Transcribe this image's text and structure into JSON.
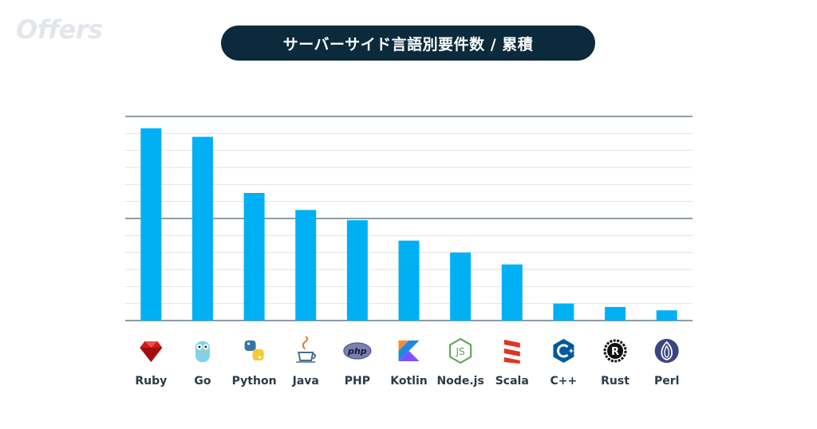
{
  "brand": {
    "watermark": "Offers"
  },
  "chart_data": {
    "type": "bar",
    "title": "サーバーサイド言語別要件数 / 累積",
    "categories": [
      "Ruby",
      "Go",
      "Python",
      "Java",
      "PHP",
      "Kotlin",
      "Node.js",
      "Scala",
      "C++",
      "Rust",
      "Perl"
    ],
    "icons": [
      "ruby-gem-icon",
      "go-gopher-icon",
      "python-icon",
      "java-cup-icon",
      "php-icon",
      "kotlin-icon",
      "nodejs-icon",
      "scala-icon",
      "cpp-icon",
      "rust-icon",
      "perl-onion-icon"
    ],
    "values": [
      113,
      108,
      75,
      65,
      59,
      47,
      40,
      33,
      10,
      8,
      6
    ],
    "ylim": [
      0,
      120
    ],
    "ytick_step": 10,
    "major_gridlines": [
      60,
      120
    ],
    "yticks_labeled": false,
    "grid": true,
    "legend": "none",
    "colors": {
      "bar": "#00b0f5",
      "grid": "#dde2e6",
      "major_grid": "#23384a"
    }
  }
}
